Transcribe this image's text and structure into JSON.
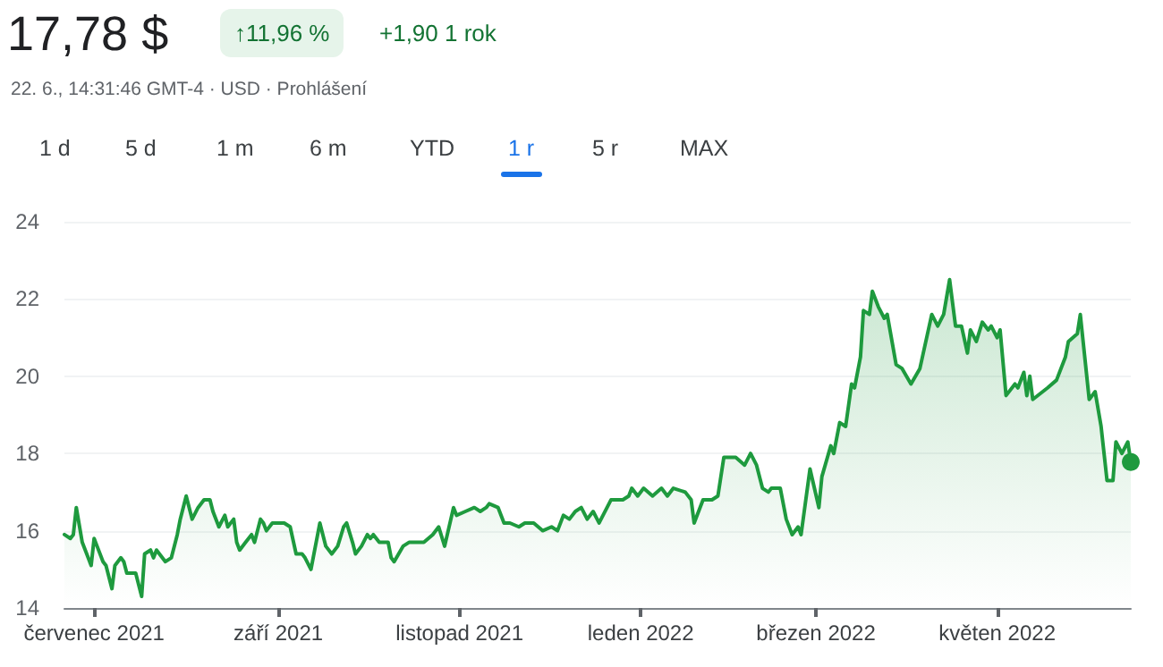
{
  "chart_data": {
    "type": "area",
    "title": "17,78 $",
    "annotations": [
      "↑11,96 %",
      "+1,90 1 rok",
      "22. 6., 14:31:46 GMT-4 · USD · Prohlášení",
      "1 d",
      "5 d",
      "1 m",
      "6 m",
      "YTD",
      "1 r",
      "5 r",
      "MAX"
    ],
    "x": [
      "2021-06-21",
      "2021-06-23",
      "2021-06-24",
      "2021-06-25",
      "2021-06-27",
      "2021-06-29",
      "2021-06-30",
      "2021-07-01",
      "2021-07-02",
      "2021-07-04",
      "2021-07-05",
      "2021-07-07",
      "2021-07-08",
      "2021-07-10",
      "2021-07-11",
      "2021-07-12",
      "2021-07-15",
      "2021-07-17",
      "2021-07-18",
      "2021-07-20",
      "2021-07-21",
      "2021-07-22",
      "2021-07-25",
      "2021-07-27",
      "2021-07-29",
      "2021-07-30",
      "2021-08-01",
      "2021-08-03",
      "2021-08-05",
      "2021-08-07",
      "2021-08-09",
      "2021-08-10",
      "2021-08-12",
      "2021-08-14",
      "2021-08-15",
      "2021-08-17",
      "2021-08-18",
      "2021-08-19",
      "2021-08-21",
      "2021-08-23",
      "2021-08-24",
      "2021-08-26",
      "2021-08-27",
      "2021-08-28",
      "2021-08-30",
      "2021-09-03",
      "2021-09-05",
      "2021-09-07",
      "2021-09-09",
      "2021-09-10",
      "2021-09-12",
      "2021-09-15",
      "2021-09-17",
      "2021-09-19",
      "2021-09-21",
      "2021-09-23",
      "2021-09-24",
      "2021-09-26",
      "2021-09-27",
      "2021-09-29",
      "2021-10-01",
      "2021-10-02",
      "2021-10-03",
      "2021-10-05",
      "2021-10-08",
      "2021-10-09",
      "2021-10-10",
      "2021-10-13",
      "2021-10-15",
      "2021-10-17",
      "2021-10-20",
      "2021-10-23",
      "2021-10-25",
      "2021-10-27",
      "2021-10-30",
      "2021-10-31",
      "2021-11-03",
      "2021-11-06",
      "2021-11-08",
      "2021-11-10",
      "2021-11-11",
      "2021-11-14",
      "2021-11-16",
      "2021-11-18",
      "2021-11-21",
      "2021-11-23",
      "2021-11-26",
      "2021-11-29",
      "2021-12-02",
      "2021-12-04",
      "2021-12-06",
      "2021-12-08",
      "2021-12-10",
      "2021-12-12",
      "2021-12-14",
      "2021-12-16",
      "2021-12-18",
      "2021-12-22",
      "2021-12-26",
      "2021-12-28",
      "2021-12-29",
      "2021-12-31",
      "2022-01-02",
      "2022-01-05",
      "2022-01-08",
      "2022-01-10",
      "2022-01-12",
      "2022-01-16",
      "2022-01-18",
      "2022-01-19",
      "2022-01-22",
      "2022-01-25",
      "2022-01-27",
      "2022-01-29",
      "2022-01-31",
      "2022-02-02",
      "2022-02-05",
      "2022-02-07",
      "2022-02-09",
      "2022-02-11",
      "2022-02-13",
      "2022-02-14",
      "2022-02-17",
      "2022-02-19",
      "2022-02-21",
      "2022-02-23",
      "2022-02-24",
      "2022-02-27",
      "2022-03-02",
      "2022-03-03",
      "2022-03-06",
      "2022-03-07",
      "2022-03-09",
      "2022-03-11",
      "2022-03-13",
      "2022-03-14",
      "2022-03-16",
      "2022-03-17",
      "2022-03-19",
      "2022-03-20",
      "2022-03-22",
      "2022-03-24",
      "2022-03-25",
      "2022-03-28",
      "2022-03-30",
      "2022-04-02",
      "2022-04-05",
      "2022-04-09",
      "2022-04-11",
      "2022-04-13",
      "2022-04-15",
      "2022-04-17",
      "2022-04-19",
      "2022-04-21",
      "2022-04-22",
      "2022-04-24",
      "2022-04-26",
      "2022-04-28",
      "2022-04-29",
      "2022-05-01",
      "2022-05-02",
      "2022-05-04",
      "2022-05-07",
      "2022-05-08",
      "2022-05-10",
      "2022-05-11",
      "2022-05-12",
      "2022-05-13",
      "2022-05-18",
      "2022-05-21",
      "2022-05-24",
      "2022-05-25",
      "2022-05-28",
      "2022-05-29",
      "2022-06-01",
      "2022-06-03",
      "2022-06-05",
      "2022-06-07",
      "2022-06-09",
      "2022-06-10",
      "2022-06-12",
      "2022-06-14",
      "2022-06-15"
    ],
    "series": [
      {
        "color": "#1e9a3e",
        "values": [
          15.9,
          15.8,
          15.9,
          16.6,
          15.7,
          15.3,
          15.1,
          15.8,
          15.6,
          15.2,
          15.1,
          14.5,
          15.1,
          15.3,
          15.2,
          14.9,
          14.9,
          14.3,
          15.4,
          15.5,
          15.3,
          15.5,
          15.2,
          15.3,
          15.9,
          16.3,
          16.9,
          16.3,
          16.6,
          16.8,
          16.8,
          16.5,
          16.1,
          16.4,
          16.1,
          16.3,
          15.7,
          15.5,
          15.7,
          15.9,
          15.7,
          16.3,
          16.2,
          16.0,
          16.2,
          16.2,
          16.1,
          15.4,
          15.4,
          15.3,
          15.0,
          16.2,
          15.6,
          15.4,
          15.6,
          16.1,
          16.2,
          15.7,
          15.4,
          15.6,
          15.9,
          15.8,
          15.9,
          15.7,
          15.7,
          15.3,
          15.2,
          15.6,
          15.7,
          15.7,
          15.7,
          15.9,
          16.1,
          15.6,
          16.6,
          16.4,
          16.5,
          16.6,
          16.5,
          16.6,
          16.7,
          16.6,
          16.2,
          16.2,
          16.1,
          16.2,
          16.2,
          16.0,
          16.1,
          16.0,
          16.4,
          16.3,
          16.5,
          16.6,
          16.3,
          16.5,
          16.2,
          16.8,
          16.8,
          16.9,
          17.1,
          16.9,
          17.1,
          16.9,
          17.1,
          16.9,
          17.1,
          17.0,
          16.8,
          16.2,
          16.8,
          16.8,
          16.9,
          17.9,
          17.9,
          17.9,
          17.7,
          18.0,
          17.7,
          17.1,
          17.0,
          17.1,
          17.1,
          16.3,
          15.9,
          16.1,
          15.9,
          17.6,
          16.6,
          17.4,
          18.2,
          18.0,
          18.8,
          18.7,
          19.8,
          19.7,
          20.5,
          21.7,
          21.6,
          22.2,
          21.8,
          21.5,
          21.6,
          20.3,
          20.2,
          19.8,
          20.2,
          21.6,
          21.3,
          21.6,
          22.5,
          21.3,
          21.3,
          20.6,
          21.2,
          20.9,
          21.4,
          21.2,
          21.3,
          21.0,
          21.2,
          19.5,
          19.8,
          19.7,
          20.1,
          19.5,
          20.0,
          19.4,
          19.7,
          19.9,
          20.5,
          20.9,
          21.1,
          21.6,
          19.4,
          19.6,
          18.7,
          17.3,
          17.3,
          18.3,
          18.0,
          18.3,
          17.78
        ]
      }
    ],
    "xlim": [
      "2021-06-21",
      "2022-06-15"
    ],
    "xticks": [
      {
        "value": "2021-07-01",
        "label": "červenec 2021"
      },
      {
        "value": "2021-09-01",
        "label": "září 2021"
      },
      {
        "value": "2021-11-01",
        "label": "listopad 2021"
      },
      {
        "value": "2022-01-01",
        "label": "leden 2022"
      },
      {
        "value": "2022-03-01",
        "label": "březen 2022"
      },
      {
        "value": "2022-05-01",
        "label": "květen 2022"
      }
    ],
    "ylim": [
      14,
      24
    ],
    "yticks": [
      14,
      16,
      18,
      20,
      22,
      24
    ],
    "grid": "y",
    "marker": "none",
    "line_style": "solid"
  }
}
